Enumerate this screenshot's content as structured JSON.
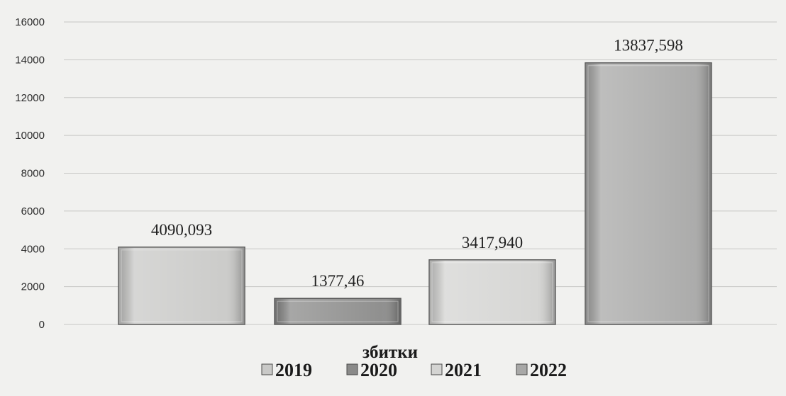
{
  "chart_data": {
    "type": "bar",
    "categories": [
      "2019",
      "2020",
      "2021",
      "2022"
    ],
    "values": [
      4090.093,
      1377.46,
      3417.94,
      13837.598
    ],
    "data_labels": [
      "4090,093",
      "1377,46",
      "3417,940",
      "13837,598"
    ],
    "xlabel": "збитки",
    "ylabel": "",
    "ylim": [
      0,
      16000
    ],
    "yticks": [
      0,
      2000,
      4000,
      6000,
      8000,
      10000,
      12000,
      14000,
      16000
    ],
    "grid": true,
    "legend_position": "bottom",
    "legend": [
      "2019",
      "2020",
      "2021",
      "2022"
    ],
    "colors": [
      "#c9c9c7",
      "#8a8a89",
      "#d4d4d2",
      "#a8a8a7"
    ]
  }
}
